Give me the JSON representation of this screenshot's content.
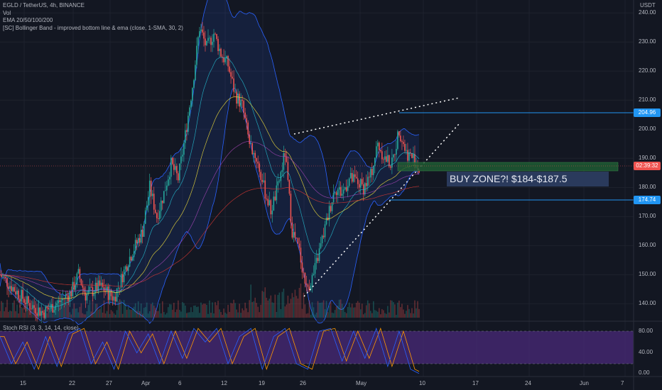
{
  "header": {
    "symbol_line": "EGLD / TetherUS, 4h, BINANCE",
    "volume_label": "Vol",
    "ema_label": "EMA 20/50/100/200",
    "bb_label": "[SC] Bollinger Band - improved bottom line & ema (close, 1-SMA, 30, 2)"
  },
  "price_axis": {
    "currency": "USDT",
    "ticks": [
      "240.00",
      "230.00",
      "220.00",
      "210.00",
      "200.00",
      "190.00",
      "180.00",
      "170.00",
      "160.00",
      "150.00",
      "140.00"
    ]
  },
  "price_tags": {
    "resistance": "204.96",
    "current_time": "02:39:32",
    "support": "174.74"
  },
  "annotation": {
    "buy_zone": "BUY ZONE?! $184-$187.5"
  },
  "stoch_rsi": {
    "title": "Stoch RSI (3, 3, 14, 14, close)",
    "ticks": [
      "80.00",
      "40.00",
      "0.00"
    ]
  },
  "time_axis": {
    "labels": [
      "15",
      "22",
      "27",
      "Apr",
      "6",
      "12",
      "19",
      "26",
      "May",
      "10",
      "17",
      "24",
      "Jun",
      "7"
    ]
  },
  "colors": {
    "background": "#131722",
    "up": "#26a69a",
    "down": "#ef5350",
    "band": "#2962ff",
    "zone": "#1e5a32",
    "stoch_bg": "#4a2a7a"
  },
  "chart_data": {
    "type": "candlestick",
    "title": "EGLD / TetherUS, 4h, BINANCE",
    "ylim": [
      134,
      242
    ],
    "resistance": 204.96,
    "support": 174.74,
    "buy_zone": [
      184,
      187.5
    ],
    "close_keypoints": [
      {
        "t": 0,
        "v": 150
      },
      {
        "t": 20,
        "v": 140
      },
      {
        "t": 30,
        "v": 137
      },
      {
        "t": 40,
        "v": 140
      },
      {
        "t": 50,
        "v": 144
      },
      {
        "t": 55,
        "v": 150
      },
      {
        "t": 60,
        "v": 143
      },
      {
        "t": 70,
        "v": 146
      },
      {
        "t": 80,
        "v": 142
      },
      {
        "t": 90,
        "v": 155
      },
      {
        "t": 100,
        "v": 165
      },
      {
        "t": 105,
        "v": 180
      },
      {
        "t": 110,
        "v": 170
      },
      {
        "t": 115,
        "v": 178
      },
      {
        "t": 120,
        "v": 188
      },
      {
        "t": 125,
        "v": 183
      },
      {
        "t": 130,
        "v": 198
      },
      {
        "t": 135,
        "v": 215
      },
      {
        "t": 140,
        "v": 235
      },
      {
        "t": 145,
        "v": 228
      },
      {
        "t": 150,
        "v": 233
      },
      {
        "t": 155,
        "v": 226
      },
      {
        "t": 160,
        "v": 222
      },
      {
        "t": 165,
        "v": 212
      },
      {
        "t": 170,
        "v": 208
      },
      {
        "t": 175,
        "v": 195
      },
      {
        "t": 180,
        "v": 190
      },
      {
        "t": 185,
        "v": 180
      },
      {
        "t": 190,
        "v": 172
      },
      {
        "t": 195,
        "v": 180
      },
      {
        "t": 200,
        "v": 192
      },
      {
        "t": 205,
        "v": 165
      },
      {
        "t": 210,
        "v": 158
      },
      {
        "t": 215,
        "v": 145
      },
      {
        "t": 220,
        "v": 150
      },
      {
        "t": 225,
        "v": 160
      },
      {
        "t": 230,
        "v": 170
      },
      {
        "t": 235,
        "v": 180
      },
      {
        "t": 240,
        "v": 178
      },
      {
        "t": 245,
        "v": 183
      },
      {
        "t": 250,
        "v": 182
      },
      {
        "t": 255,
        "v": 180
      },
      {
        "t": 260,
        "v": 184
      },
      {
        "t": 265,
        "v": 195
      },
      {
        "t": 270,
        "v": 190
      },
      {
        "t": 275,
        "v": 188
      },
      {
        "t": 280,
        "v": 200
      },
      {
        "t": 285,
        "v": 192
      },
      {
        "t": 290,
        "v": 190
      },
      {
        "t": 294,
        "v": 186
      }
    ],
    "stoch_keypoints": [
      {
        "t": 0,
        "v": 70
      },
      {
        "t": 8,
        "v": 20
      },
      {
        "t": 16,
        "v": 60
      },
      {
        "t": 24,
        "v": 10
      },
      {
        "t": 32,
        "v": 70
      },
      {
        "t": 40,
        "v": 15
      },
      {
        "t": 48,
        "v": 75
      },
      {
        "t": 56,
        "v": 85
      },
      {
        "t": 64,
        "v": 20
      },
      {
        "t": 72,
        "v": 60
      },
      {
        "t": 80,
        "v": 10
      },
      {
        "t": 88,
        "v": 80
      },
      {
        "t": 96,
        "v": 40
      },
      {
        "t": 104,
        "v": 75
      },
      {
        "t": 112,
        "v": 20
      },
      {
        "t": 120,
        "v": 80
      },
      {
        "t": 128,
        "v": 30
      },
      {
        "t": 136,
        "v": 85
      },
      {
        "t": 144,
        "v": 60
      },
      {
        "t": 152,
        "v": 85
      },
      {
        "t": 160,
        "v": 20
      },
      {
        "t": 168,
        "v": 70
      },
      {
        "t": 176,
        "v": 85
      },
      {
        "t": 184,
        "v": 10
      },
      {
        "t": 192,
        "v": 70
      },
      {
        "t": 200,
        "v": 85
      },
      {
        "t": 208,
        "v": 20
      },
      {
        "t": 216,
        "v": 10
      },
      {
        "t": 224,
        "v": 80
      },
      {
        "t": 232,
        "v": 85
      },
      {
        "t": 240,
        "v": 25
      },
      {
        "t": 248,
        "v": 80
      },
      {
        "t": 256,
        "v": 30
      },
      {
        "t": 264,
        "v": 85
      },
      {
        "t": 272,
        "v": 15
      },
      {
        "t": 280,
        "v": 80
      },
      {
        "t": 288,
        "v": 10
      },
      {
        "t": 294,
        "v": 2
      }
    ]
  }
}
